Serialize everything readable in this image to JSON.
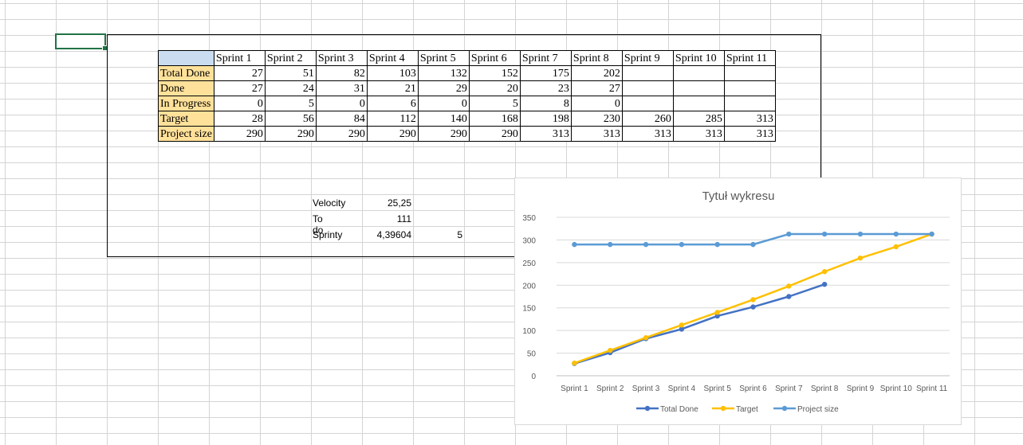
{
  "table": {
    "headers": [
      "Sprint 1",
      "Sprint 2",
      "Sprint 3",
      "Sprint 4",
      "Sprint 5",
      "Sprint 6",
      "Sprint 7",
      "Sprint 8",
      "Sprint 9",
      "Sprint 10",
      "Sprint 11"
    ],
    "rows": [
      {
        "label": "Total Done",
        "values": [
          "27",
          "51",
          "82",
          "103",
          "132",
          "152",
          "175",
          "202",
          "",
          "",
          ""
        ]
      },
      {
        "label": "Done",
        "values": [
          "27",
          "24",
          "31",
          "21",
          "29",
          "20",
          "23",
          "27",
          "",
          "",
          ""
        ]
      },
      {
        "label": "In Progress",
        "values": [
          "0",
          "5",
          "0",
          "6",
          "0",
          "5",
          "8",
          "0",
          "",
          "",
          ""
        ]
      },
      {
        "label": "Target",
        "values": [
          "28",
          "56",
          "84",
          "112",
          "140",
          "168",
          "198",
          "230",
          "260",
          "285",
          "313"
        ]
      },
      {
        "label": "Project size",
        "values": [
          "290",
          "290",
          "290",
          "290",
          "290",
          "290",
          "313",
          "313",
          "313",
          "313",
          "313"
        ]
      }
    ]
  },
  "metrics": [
    {
      "label": "Velocity",
      "value": "25,25",
      "extra": ""
    },
    {
      "label": "To do",
      "value": "111",
      "extra": ""
    },
    {
      "label": "Sprinty",
      "value": "4,39604",
      "extra": "5"
    }
  ],
  "colors": {
    "total_done": "#4472c4",
    "target": "#ffc000",
    "project_size": "#5b9bd5",
    "grid": "#d9d9d9",
    "corner": "#c9dcf0",
    "row_label": "#ffe19a"
  },
  "chart_data": {
    "type": "line",
    "title": "Tytuł wykresu",
    "categories": [
      "Sprint 1",
      "Sprint 2",
      "Sprint 3",
      "Sprint 4",
      "Sprint 5",
      "Sprint 6",
      "Sprint 7",
      "Sprint 8",
      "Sprint 9",
      "Sprint 10",
      "Sprint 11"
    ],
    "series": [
      {
        "name": "Total Done",
        "color": "#4472c4",
        "values": [
          27,
          51,
          82,
          103,
          132,
          152,
          175,
          202,
          null,
          null,
          null
        ]
      },
      {
        "name": "Target",
        "color": "#ffc000",
        "values": [
          28,
          56,
          84,
          112,
          140,
          168,
          198,
          230,
          260,
          285,
          313
        ]
      },
      {
        "name": "Project size",
        "color": "#5b9bd5",
        "values": [
          290,
          290,
          290,
          290,
          290,
          290,
          313,
          313,
          313,
          313,
          313
        ]
      }
    ],
    "ylim": [
      0,
      350
    ],
    "yticks": [
      0,
      50,
      100,
      150,
      200,
      250,
      300,
      350
    ],
    "grid": true,
    "legend": "bottom"
  }
}
